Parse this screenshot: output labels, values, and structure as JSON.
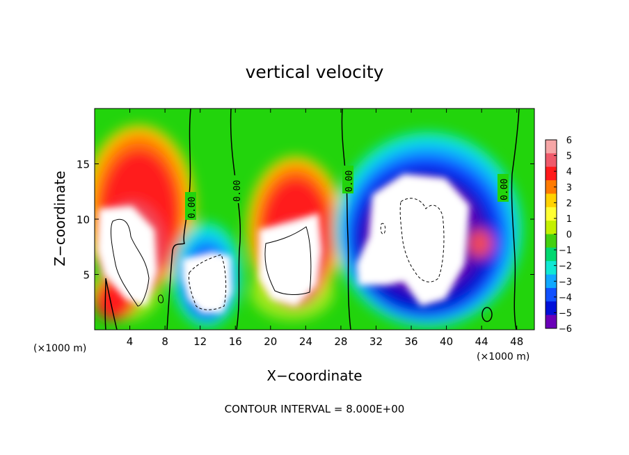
{
  "chart_data": {
    "type": "heatmap",
    "title": "vertical velocity",
    "xlabel": "X−coordinate",
    "ylabel": "Z−coordinate",
    "x_unit_left": "(×1000 m)",
    "x_unit_right": "(×1000 m)",
    "footer": "CONTOUR INTERVAL = 8.000E+00",
    "xlim": [
      0,
      50
    ],
    "ylim": [
      0,
      20
    ],
    "x_ticks": [
      "4",
      "8",
      "12",
      "16",
      "20",
      "24",
      "28",
      "32",
      "36",
      "40",
      "44",
      "48"
    ],
    "x_tick_values": [
      4,
      8,
      12,
      16,
      20,
      24,
      28,
      32,
      36,
      40,
      44,
      48
    ],
    "y_ticks": [
      "5",
      "10",
      "15"
    ],
    "y_tick_values": [
      5,
      10,
      15
    ],
    "colorbar": {
      "labels": [
        "6",
        "5",
        "4",
        "3",
        "2",
        "1",
        "0",
        "−1",
        "−2",
        "−3",
        "−4",
        "−5",
        "−6"
      ],
      "values": [
        6,
        5,
        4,
        3,
        2,
        1,
        0,
        -1,
        -2,
        -3,
        -4,
        -5,
        -6
      ],
      "colors": [
        "#f6a6a6",
        "#ef5a6a",
        "#ff1a1a",
        "#ff7a00",
        "#ffd200",
        "#ffff33",
        "#c4f000",
        "#44d010",
        "#00d870",
        "#10e8d4",
        "#10a8ff",
        "#1050ff",
        "#0010d8",
        "#6a00b8"
      ]
    },
    "contour_labels": [
      "0.00",
      "0.00",
      "0.00",
      "0.00"
    ],
    "contour_label_positions": [
      [
        9.1,
        11.8
      ],
      [
        13.0,
        13.2
      ],
      [
        28.6,
        13.6
      ],
      [
        46.2,
        13.0
      ]
    ],
    "features": [
      {
        "name": "updraft",
        "x": [
          0,
          10
        ],
        "z": [
          1,
          17.5
        ],
        "max_exceeds": 6
      },
      {
        "name": "downdraft",
        "x": [
          10,
          16
        ],
        "z": [
          1,
          7.5
        ],
        "min_below": -6
      },
      {
        "name": "updraft",
        "x": [
          17,
          28
        ],
        "z": [
          1,
          15
        ],
        "max_exceeds": 6
      },
      {
        "name": "downdraft",
        "x": [
          29,
          46
        ],
        "z": [
          1,
          17
        ],
        "min_below": -6
      }
    ]
  }
}
